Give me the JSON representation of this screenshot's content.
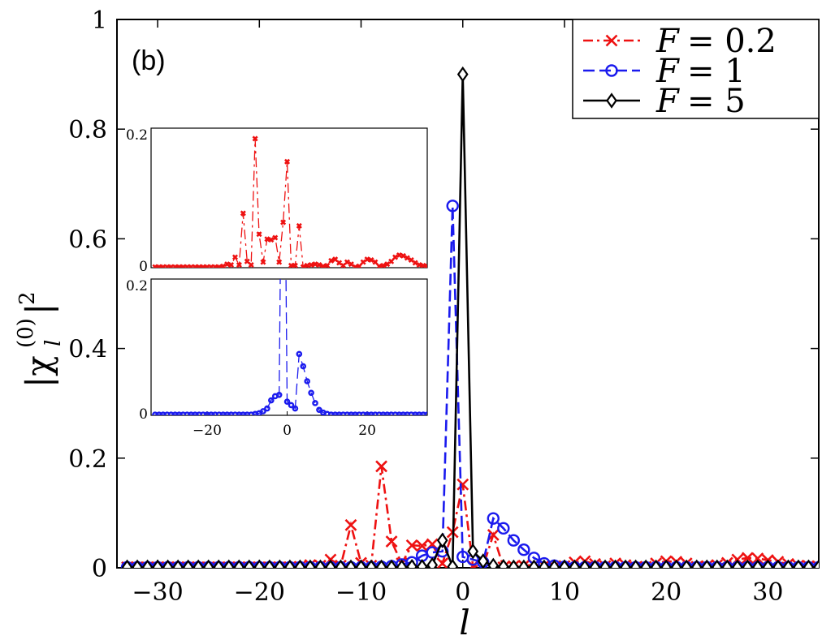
{
  "chart_data": {
    "type": "line",
    "panel_label": "(b)",
    "xlabel": "l",
    "ylabel_base": "|χ",
    "ylabel_sub": "l",
    "ylabel_sup": "(0)",
    "ylabel_end": "|",
    "ylabel_power": "2",
    "xlim": [
      -34,
      35
    ],
    "ylim": [
      0,
      1
    ],
    "xticks": [
      -30,
      -20,
      -10,
      0,
      10,
      20,
      30
    ],
    "xtick_labels": [
      "−30",
      "−20",
      "−10",
      "0",
      "10",
      "20",
      "30"
    ],
    "yticks": [
      0,
      0.2,
      0.4,
      0.6,
      0.8,
      1
    ],
    "ytick_labels": [
      "0",
      "0.2",
      "0.4",
      "0.6",
      "0.8",
      "1"
    ],
    "x": [
      -33,
      -32,
      -31,
      -30,
      -29,
      -28,
      -27,
      -26,
      -25,
      -24,
      -23,
      -22,
      -21,
      -20,
      -19,
      -18,
      -17,
      -16,
      -15,
      -14,
      -13,
      -12,
      -11,
      -10,
      -9,
      -8,
      -7,
      -6,
      -5,
      -4,
      -3,
      -2,
      -1,
      0,
      1,
      2,
      3,
      4,
      5,
      6,
      7,
      8,
      9,
      10,
      11,
      12,
      13,
      14,
      15,
      16,
      17,
      18,
      19,
      20,
      21,
      22,
      23,
      24,
      25,
      26,
      27,
      28,
      29,
      30,
      31,
      32,
      33,
      34,
      35
    ],
    "series": [
      {
        "name": "F = 0.2",
        "legend_prefix": "F",
        "legend_value": "= 0.2",
        "color": "#ee1111",
        "marker": "x",
        "values": [
          0.001,
          0.001,
          0.001,
          0.001,
          0.001,
          0.001,
          0.001,
          0.001,
          0.001,
          0.001,
          0.001,
          0.001,
          0.001,
          0.001,
          0.001,
          0.001,
          0.001,
          0.002,
          0.005,
          0.004,
          0.015,
          0.004,
          0.078,
          0.009,
          0.004,
          0.185,
          0.048,
          0.008,
          0.041,
          0.04,
          0.043,
          0.008,
          0.065,
          0.152,
          0.003,
          0.003,
          0.06,
          0.001,
          0.003,
          0.004,
          0.005,
          0.004,
          0.002,
          0.003,
          0.01,
          0.012,
          0.007,
          0.003,
          0.008,
          0.005,
          0.001,
          0.002,
          0.008,
          0.012,
          0.011,
          0.008,
          0.002,
          0.003,
          0.005,
          0.009,
          0.015,
          0.018,
          0.017,
          0.014,
          0.011,
          0.007,
          0.004,
          0.003,
          0.002
        ]
      },
      {
        "name": "F = 1",
        "legend_prefix": "F",
        "legend_value": "= 1",
        "color": "#1a1aee",
        "marker": "o",
        "values": [
          0.001,
          0.001,
          0.001,
          0.001,
          0.001,
          0.001,
          0.001,
          0.001,
          0.001,
          0.001,
          0.001,
          0.001,
          0.001,
          0.001,
          0.001,
          0.001,
          0.001,
          0.001,
          0.001,
          0.001,
          0.001,
          0.001,
          0.001,
          0.001,
          0.001,
          0.002,
          0.003,
          0.006,
          0.01,
          0.022,
          0.028,
          0.03,
          0.66,
          0.02,
          0.015,
          0.01,
          0.09,
          0.072,
          0.05,
          0.033,
          0.018,
          0.008,
          0.004,
          0.002,
          0.001,
          0.001,
          0.001,
          0.001,
          0.001,
          0.001,
          0.001,
          0.001,
          0.001,
          0.001,
          0.001,
          0.001,
          0.001,
          0.001,
          0.001,
          0.001,
          0.001,
          0.001,
          0.001,
          0.001,
          0.001,
          0.001,
          0.001,
          0.001,
          0.001
        ]
      },
      {
        "name": "F = 5",
        "legend_prefix": "F",
        "legend_value": "= 5",
        "color": "#000000",
        "marker": "diamond",
        "values": [
          0.001,
          0.001,
          0.001,
          0.001,
          0.001,
          0.001,
          0.001,
          0.001,
          0.001,
          0.001,
          0.001,
          0.001,
          0.001,
          0.001,
          0.001,
          0.001,
          0.001,
          0.001,
          0.001,
          0.001,
          0.001,
          0.001,
          0.001,
          0.001,
          0.001,
          0.001,
          0.001,
          0.001,
          0.002,
          0.002,
          0.005,
          0.05,
          0.002,
          0.9,
          0.03,
          0.012,
          0.004,
          0.002,
          0.001,
          0.001,
          0.001,
          0.001,
          0.001,
          0.001,
          0.001,
          0.001,
          0.001,
          0.001,
          0.001,
          0.001,
          0.001,
          0.001,
          0.001,
          0.001,
          0.001,
          0.001,
          0.001,
          0.001,
          0.001,
          0.001,
          0.001,
          0.001,
          0.001,
          0.001,
          0.001,
          0.001,
          0.001,
          0.001,
          0.001
        ]
      }
    ],
    "insets": [
      {
        "series_index": 0,
        "xlim": [
          -34,
          35
        ],
        "ylim": [
          0,
          0.2
        ],
        "yticks": [
          0,
          0.2
        ],
        "ytick_labels": [
          "0",
          "0.2"
        ],
        "show_xticklabels": false
      },
      {
        "series_index": 1,
        "xlim": [
          -34,
          35
        ],
        "ylim": [
          0,
          0.2
        ],
        "yticks": [
          0,
          0.2
        ],
        "ytick_labels": [
          "0",
          "0.2"
        ],
        "xticks": [
          -20,
          0,
          20
        ],
        "xtick_labels": [
          "−20",
          "0",
          "20"
        ],
        "show_xticklabels": true
      }
    ]
  }
}
